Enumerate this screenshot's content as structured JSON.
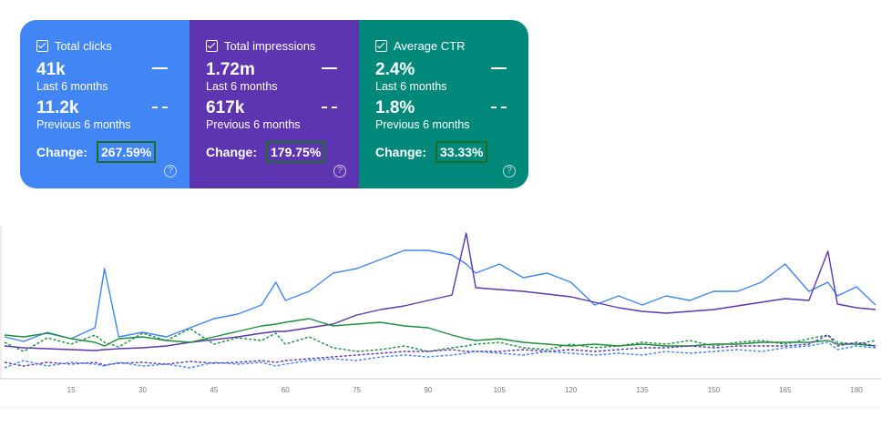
{
  "cards": [
    {
      "title": "Total clicks",
      "current": "41k",
      "current_label": "Last 6 months",
      "previous": "11.2k",
      "previous_label": "Previous 6 months",
      "change_label": "Change:",
      "change": "267.59%",
      "color": "#4285f4"
    },
    {
      "title": "Total impressions",
      "current": "1.72m",
      "current_label": "Last 6 months",
      "previous": "617k",
      "previous_label": "Previous 6 months",
      "change_label": "Change:",
      "change": "179.75%",
      "color": "#5e35b1"
    },
    {
      "title": "Average CTR",
      "current": "2.4%",
      "current_label": "Last 6 months",
      "previous": "1.8%",
      "previous_label": "Previous 6 months",
      "change_label": "Change:",
      "change": "33.33%",
      "color": "#00897b"
    }
  ],
  "help_glyph": "?",
  "chart_data": {
    "type": "line",
    "title": "",
    "xlabel": "",
    "ylabel": "",
    "xlim": [
      1,
      185
    ],
    "ylim": [
      0,
      170
    ],
    "x_ticks": [
      15,
      30,
      45,
      60,
      75,
      90,
      105,
      120,
      135,
      150,
      165,
      180
    ],
    "x": [
      1,
      5,
      10,
      15,
      20,
      22,
      25,
      30,
      35,
      40,
      45,
      50,
      55,
      58,
      60,
      65,
      70,
      75,
      80,
      85,
      90,
      95,
      98,
      100,
      105,
      110,
      115,
      120,
      125,
      130,
      135,
      140,
      145,
      150,
      155,
      160,
      165,
      170,
      174,
      176,
      180,
      184
    ],
    "series": [
      {
        "name": "Total clicks (last 6 months)",
        "color": "#4285f4",
        "dashed": false,
        "values": [
          46,
          41,
          51,
          44,
          56,
          121,
          46,
          51,
          46,
          56,
          66,
          71,
          81,
          106,
          86,
          96,
          116,
          121,
          131,
          141,
          141,
          136,
          126,
          116,
          126,
          111,
          116,
          106,
          81,
          91,
          81,
          91,
          86,
          96,
          96,
          106,
          126,
          96,
          106,
          91,
          101,
          81
        ]
      },
      {
        "name": "Total impressions (last 6 months)",
        "color": "#5e35b1",
        "dashed": false,
        "values": [
          36,
          34,
          33,
          32,
          31,
          32,
          33,
          34,
          36,
          40,
          43,
          46,
          50,
          52,
          52,
          56,
          60,
          70,
          76,
          80,
          86,
          92,
          160,
          100,
          98,
          96,
          93,
          90,
          84,
          78,
          74,
          72,
          74,
          76,
          80,
          84,
          88,
          86,
          140,
          82,
          78,
          76
        ]
      },
      {
        "name": "Average CTR (last 6 months)",
        "color": "#1e8e3e",
        "dashed": false,
        "values": [
          48,
          46,
          50,
          44,
          40,
          36,
          44,
          46,
          42,
          40,
          46,
          52,
          58,
          60,
          62,
          66,
          58,
          60,
          62,
          58,
          56,
          48,
          44,
          42,
          44,
          40,
          38,
          36,
          38,
          36,
          38,
          36,
          36,
          38,
          38,
          40,
          40,
          40,
          42,
          38,
          38,
          36
        ]
      },
      {
        "name": "Average CTR (previous 6 months)",
        "color": "#1e8e3e",
        "dashed": true,
        "values": [
          40,
          30,
          45,
          38,
          48,
          40,
          35,
          50,
          42,
          55,
          38,
          45,
          42,
          50,
          38,
          46,
          34,
          30,
          32,
          36,
          30,
          34,
          36,
          38,
          40,
          34,
          32,
          38,
          34,
          36,
          40,
          38,
          42,
          36,
          40,
          42,
          38,
          44,
          48,
          40,
          38,
          42
        ]
      },
      {
        "name": "Total impressions (previous 6 months)",
        "color": "#5e35b1",
        "dashed": true,
        "values": [
          18,
          14,
          18,
          16,
          18,
          15,
          17,
          18,
          16,
          19,
          17,
          18,
          20,
          18,
          20,
          22,
          24,
          26,
          28,
          30,
          30,
          32,
          30,
          30,
          30,
          32,
          30,
          32,
          30,
          32,
          34,
          34,
          36,
          34,
          36,
          36,
          36,
          38,
          48,
          36,
          40,
          36
        ]
      },
      {
        "name": "Total clicks (previous 6 months)",
        "color": "#4285f4",
        "dashed": true,
        "values": [
          12,
          20,
          14,
          18,
          16,
          14,
          18,
          14,
          16,
          12,
          18,
          16,
          18,
          14,
          16,
          20,
          22,
          20,
          24,
          26,
          24,
          26,
          28,
          30,
          28,
          26,
          30,
          28,
          26,
          28,
          26,
          30,
          28,
          30,
          32,
          30,
          34,
          36,
          40,
          32,
          36,
          34
        ]
      }
    ]
  }
}
